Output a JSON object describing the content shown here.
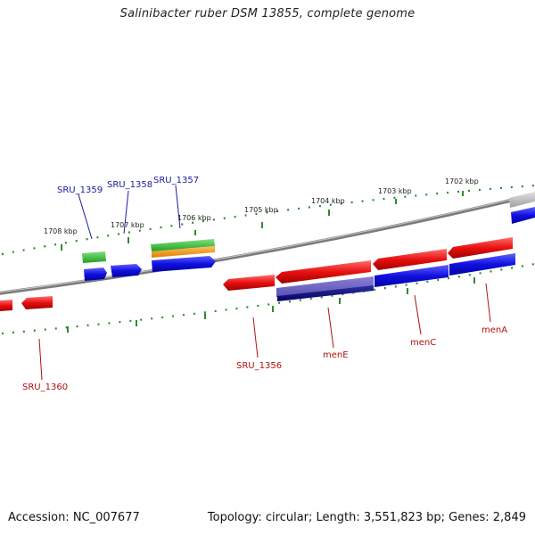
{
  "title": "Salinibacter ruber DSM 13855, complete genome",
  "footer": {
    "accession": "Accession: NC_007677",
    "summary": "Topology: circular; Length: 3,551,823 bp; Genes: 2,849"
  },
  "colors": {
    "backbone": "#808080",
    "tick": "#2e8b2e",
    "forward_label": "#1a1aa0",
    "reverse_label": "#b01010",
    "cds_red": "#e81010",
    "cds_blue": "#1010e0",
    "rna_green": "#30c030",
    "orange": "#f09010",
    "grey": "#b8b8b8"
  },
  "scale": {
    "unit": "kbp",
    "ticks": [
      {
        "value": 1702,
        "label": "1702 kbp"
      },
      {
        "value": 1703,
        "label": "1703 kbp"
      },
      {
        "value": 1704,
        "label": "1704 kbp"
      },
      {
        "value": 1705,
        "label": "1705 kbp"
      },
      {
        "value": 1706,
        "label": "1706 kbp"
      },
      {
        "value": 1707,
        "label": "1707 kbp"
      },
      {
        "value": 1708,
        "label": "1708 kbp"
      }
    ]
  },
  "gene_labels": [
    {
      "name": "SRU_1359",
      "strand": "forward"
    },
    {
      "name": "SRU_1358",
      "strand": "forward"
    },
    {
      "name": "SRU_1357",
      "strand": "forward"
    },
    {
      "name": "SRU_1360",
      "strand": "reverse"
    },
    {
      "name": "SRU_1356",
      "strand": "reverse"
    },
    {
      "name": "menE",
      "strand": "reverse"
    },
    {
      "name": "menC",
      "strand": "reverse"
    },
    {
      "name": "menA",
      "strand": "reverse"
    }
  ]
}
